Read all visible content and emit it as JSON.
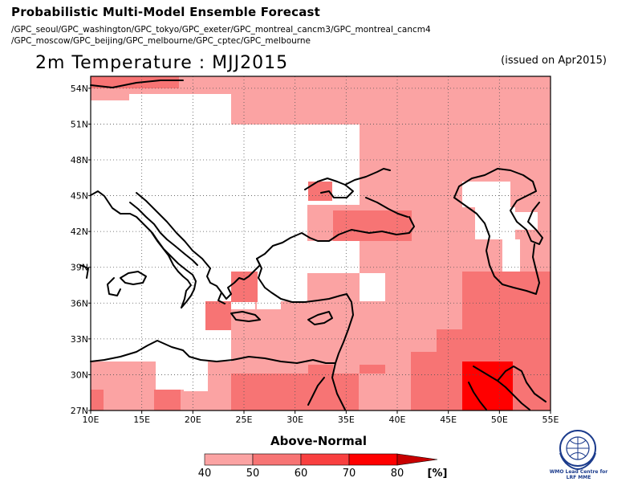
{
  "header": {
    "main_title": "Probabilistic Multi-Model Ensemble Forecast",
    "model_line_1": "/GPC_seoul/GPC_washington/GPC_tokyo/GPC_exeter/GPC_montreal_cancm3/GPC_montreal_cancm4",
    "model_line_2": "/GPC_moscow/GPC_beijing/GPC_melbourne/GPC_cptec/GPC_melbourne",
    "variable_title": "2m Temperature : MJJ2015",
    "issued": "(issued on Apr2015)"
  },
  "map": {
    "lon_ticks": [
      "10E",
      "15E",
      "20E",
      "25E",
      "30E",
      "35E",
      "40E",
      "45E",
      "50E",
      "55E"
    ],
    "lat_ticks": [
      "27N",
      "30N",
      "33N",
      "36N",
      "39N",
      "42N",
      "45N",
      "48N",
      "51N",
      "54N"
    ],
    "extent": {
      "lon_min": 10,
      "lon_max": 55,
      "lat_min": 27,
      "lat_max": 55
    }
  },
  "colorbar": {
    "title": "Above-Normal",
    "labels": [
      "40",
      "50",
      "60",
      "70",
      "80"
    ],
    "unit": "[%]",
    "colors": [
      "#fba3a3",
      "#f77474",
      "#f94040",
      "#ff0000",
      "#c80000"
    ]
  },
  "logo": {
    "text_1": "WMO Lead Centre for",
    "text_2": "LRF MME"
  }
}
